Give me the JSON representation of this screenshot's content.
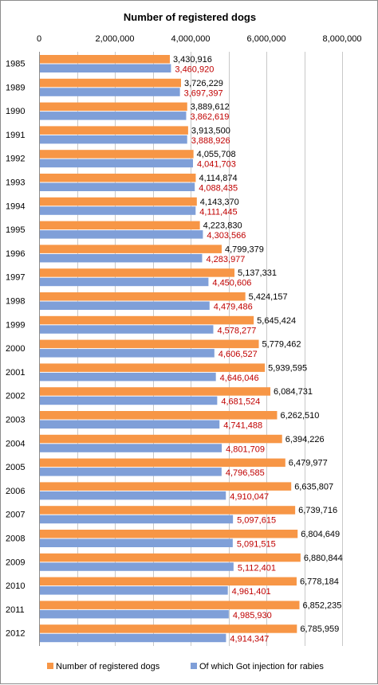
{
  "chart_data": {
    "type": "bar",
    "orientation": "horizontal",
    "title": "Number of registered dogs",
    "categories": [
      "1985",
      "1989",
      "1990",
      "1991",
      "1992",
      "1993",
      "1994",
      "1995",
      "1996",
      "1997",
      "1998",
      "1999",
      "2000",
      "2001",
      "2002",
      "2003",
      "2004",
      "2005",
      "2006",
      "2007",
      "2008",
      "2009",
      "2010",
      "2011",
      "2012"
    ],
    "series": [
      {
        "name": "Number of registered dogs",
        "color": "#f79646",
        "label_color": "#000000",
        "values": [
          3430916,
          3726229,
          3889612,
          3913500,
          4055708,
          4114874,
          4143370,
          4223830,
          4799379,
          5137331,
          5424157,
          5645424,
          5779462,
          5939595,
          6084731,
          6262510,
          6394226,
          6479977,
          6635807,
          6739716,
          6804649,
          6880844,
          6778184,
          6852235,
          6785959
        ],
        "labels": [
          "3,430,916",
          "3,726,229",
          "3,889,612",
          "3,913,500",
          "4,055,708",
          "4,114,874",
          "4,143,370",
          "4,223,830",
          "4,799,379",
          "5,137,331",
          "5,424,157",
          "5,645,424",
          "5,779,462",
          "5,939,595",
          "6,084,731",
          "6,262,510",
          "6,394,226",
          "6,479,977",
          "6,635,807",
          "6,739,716",
          "6,804,649",
          "6,880,844",
          "6,778,184",
          "6,852,235",
          "6,785,959"
        ]
      },
      {
        "name": "Of which Got injection for rabies",
        "color": "#7f9fd8",
        "label_color": "#c00000",
        "values": [
          3460920,
          3697397,
          3862619,
          3888926,
          4041703,
          4088435,
          4111445,
          4303566,
          4283977,
          4450606,
          4479486,
          4578277,
          4606527,
          4646046,
          4681524,
          4741488,
          4801709,
          4796585,
          4910047,
          5097615,
          5091515,
          5112401,
          4961401,
          4985930,
          4914347
        ],
        "labels": [
          "3,460,920",
          "3,697,397",
          "3,862,619",
          "3,888,926",
          "4,041,703",
          "4,088,435",
          "4,111,445",
          "4,303,566",
          "4,283,977",
          "4,450,606",
          "4,479,486",
          "4,578,277",
          "4,606,527",
          "4,646,046",
          "4,681,524",
          "4,741,488",
          "4,801,709",
          "4,796,585",
          "4,910,047",
          "5,097,615",
          "5,091,515",
          "5,112,401",
          "4,961,401",
          "4,985,930",
          "4,914,347"
        ]
      }
    ],
    "x_ticks": [
      0,
      2000000,
      4000000,
      6000000,
      8000000
    ],
    "x_tick_labels": [
      "0",
      "2,000,000",
      "4,000,000",
      "6,000,000",
      "8,000,000"
    ],
    "xlim": [
      0,
      8000000
    ],
    "x_axis_position": "top",
    "grid": true,
    "gridline_color": "#c8c8c8",
    "legend_position": "bottom"
  }
}
